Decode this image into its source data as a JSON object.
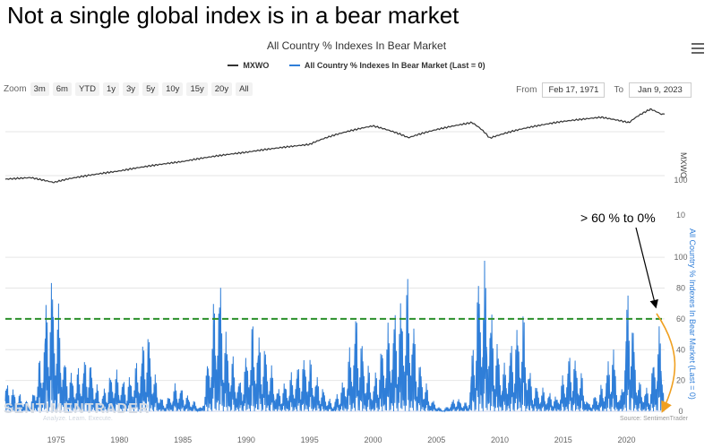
{
  "headline": "Not a single global index is in a bear market",
  "chart_title": "All Country % Indexes In Bear Market",
  "menu_icon": "hamburger-menu-icon",
  "legend": [
    {
      "label": "MXWO",
      "color": "#333333"
    },
    {
      "label": "All Country % Indexes In Bear Market (Last = 0)",
      "color": "#2f7ed8"
    }
  ],
  "zoom": {
    "label": "Zoom",
    "buttons": [
      "3m",
      "6m",
      "YTD",
      "1y",
      "3y",
      "5y",
      "10y",
      "15y",
      "20y",
      "All"
    ]
  },
  "range": {
    "from_label": "From",
    "from_value": "Feb 17, 1971",
    "to_label": "To",
    "to_value": "Jan 9, 2023"
  },
  "watermark": {
    "main": "SENTIMENTRADER",
    "sub": "Analyze. Learn. Execute."
  },
  "source": "Source: SentimenTrader",
  "annotation": "> 60 % to 0%",
  "colors": {
    "price": "#333333",
    "bear": "#2f7ed8",
    "threshold": "#2a8f2a",
    "arrow": "#f0a020"
  },
  "chart_data": [
    {
      "type": "line",
      "series": [
        {
          "name": "MXWO",
          "x": [
            1971,
            1973,
            1974.8,
            1976,
            1980,
            1985,
            1987.8,
            1990,
            1995,
            2000,
            2002.8,
            2007.8,
            2009.2,
            2012,
            2015,
            2018,
            2020.2,
            2021.9,
            2022.8,
            2023
          ],
          "values": [
            100,
            108,
            85,
            102,
            150,
            240,
            320,
            380,
            560,
            1400,
            780,
            1650,
            760,
            1250,
            1750,
            2150,
            1650,
            3200,
            2450,
            2600
          ]
        }
      ],
      "ylabel": "MXWO",
      "yticks": [
        "100"
      ],
      "log_scale": true
    },
    {
      "type": "line",
      "series": [
        {
          "name": "All Country % Indexes In Bear Market (Last = 0)",
          "x": [
            1971,
            1973,
            1973.8,
            1974.5,
            1975.2,
            1975.8,
            1976.5,
            1977.5,
            1978.5,
            1979.5,
            1980.5,
            1981.5,
            1982.2,
            1982.8,
            1983.5,
            1984.5,
            1985.5,
            1986.5,
            1987.8,
            1988.5,
            1989.5,
            1990.5,
            1991.5,
            1992.5,
            1993.5,
            1994.8,
            1995.8,
            1996.8,
            1997.8,
            1998.7,
            1999.3,
            2000,
            2000.8,
            2001.8,
            2002.8,
            2003.5,
            2004.5,
            2005.5,
            2006.5,
            2007.5,
            2008.3,
            2008.8,
            2009.5,
            2010.3,
            2011,
            2011.8,
            2012.5,
            2013.5,
            2014.5,
            2015.5,
            2016.2,
            2017,
            2018.2,
            2018.9,
            2019.5,
            2020.2,
            2020.5,
            2021,
            2021.8,
            2022.3,
            2022.8,
            2023
          ],
          "values": [
            20,
            5,
            40,
            100,
            70,
            30,
            25,
            40,
            10,
            30,
            20,
            35,
            60,
            25,
            5,
            20,
            10,
            2,
            100,
            50,
            20,
            60,
            45,
            15,
            25,
            40,
            20,
            5,
            25,
            70,
            40,
            20,
            50,
            70,
            90,
            40,
            10,
            0,
            10,
            5,
            95,
            100,
            60,
            30,
            50,
            70,
            20,
            15,
            10,
            40,
            35,
            5,
            20,
            50,
            5,
            100,
            60,
            20,
            15,
            50,
            60,
            0
          ]
        }
      ],
      "threshold": 60,
      "ylabel": "All Country % Indexes In Bear Market (Last = 0)",
      "yticks": [
        0,
        20,
        40,
        60,
        80,
        100
      ],
      "ytick_top_label": "10",
      "ylim": [
        0,
        110
      ]
    }
  ],
  "xaxis": {
    "ticks": [
      "1975",
      "1980",
      "1985",
      "1990",
      "1995",
      "2000",
      "2005",
      "2010",
      "2015",
      "2020"
    ],
    "range": [
      1971,
      2023
    ]
  }
}
